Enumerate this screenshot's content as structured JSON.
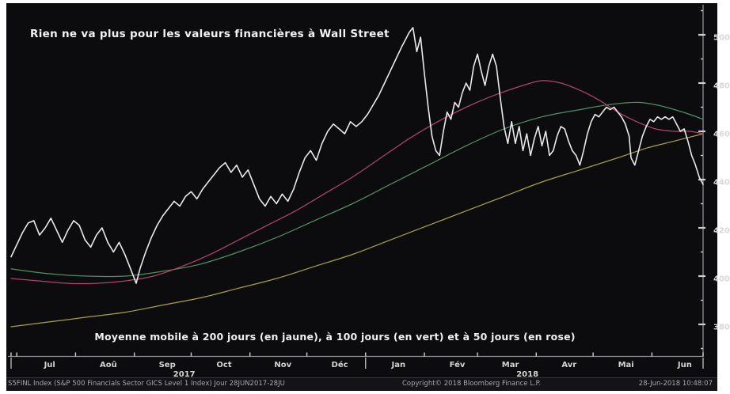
{
  "header": {
    "title": "Rien ne va plus pour les valeurs financières à Wall Street"
  },
  "annotation": {
    "text": "Moyenne mobile à 200 jours (en jaune), à 100 jours (en vert) et à 50 jours (en rose)"
  },
  "statusbar": {
    "left": "S5FINL Index (S&P 500 Financials Sector GICS Level 1 Index)  Jour 28JUN2017-28JU",
    "copyright": "Copyright© 2018 Bloomberg Finance L.P.",
    "timestamp": "28-Jun-2018 10:48:07"
  },
  "colors": {
    "background": "#0c0c0f",
    "price_line": "#e9e9e9",
    "ma50_rose": "#b04468",
    "ma100_vert": "#4f8f63",
    "ma200_jaune": "#a6a23f",
    "axis": "#8f8f94",
    "tick_label": "#d8d8d8"
  },
  "chart_data": {
    "type": "line",
    "title": "Rien ne va plus pour les valeurs financières à Wall Street",
    "xlabel": "",
    "ylabel": "",
    "x_period": "28JUN2017 - 28JUN2018 (daily)",
    "ylim": [
      367,
      511
    ],
    "y_ticks_major": [
      380,
      400,
      420,
      440,
      460,
      480,
      500
    ],
    "y_ticks_minor": [
      370,
      390,
      410,
      430,
      450,
      470,
      490,
      510
    ],
    "grid": "off",
    "legend_position": "none (described in annotation text)",
    "months": [
      {
        "label": "Jul",
        "day": 17
      },
      {
        "label": "Aoû",
        "day": 48
      },
      {
        "label": "Sep",
        "day": 79
      },
      {
        "label": "Oct",
        "day": 109
      },
      {
        "label": "Nov",
        "day": 140
      },
      {
        "label": "Déc",
        "day": 170
      },
      {
        "label": "Jan",
        "day": 201
      },
      {
        "label": "Fév",
        "day": 232
      },
      {
        "label": "Mar",
        "day": 260
      },
      {
        "label": "Avr",
        "day": 291
      },
      {
        "label": "Mai",
        "day": 321
      },
      {
        "label": "Jun",
        "day": 352
      }
    ],
    "month_start_tick_days": [
      0,
      3,
      34,
      65,
      95,
      126,
      156,
      187,
      218,
      246,
      277,
      307,
      338,
      365
    ],
    "years": [
      {
        "label": "2017",
        "day": 88
      },
      {
        "label": "2018",
        "day": 269
      }
    ],
    "year_separator_tick_days": [
      0,
      187,
      365
    ],
    "x_axis_days_total": 365,
    "series": [
      {
        "name": "MA 200 jours (jaune)",
        "color": "#a6a23f",
        "width": 1.25,
        "smooth": true,
        "points": [
          [
            0,
            379
          ],
          [
            20,
            381
          ],
          [
            40,
            383
          ],
          [
            60,
            385
          ],
          [
            80,
            388
          ],
          [
            100,
            391
          ],
          [
            120,
            395
          ],
          [
            140,
            399
          ],
          [
            160,
            404
          ],
          [
            180,
            409
          ],
          [
            200,
            415
          ],
          [
            220,
            421
          ],
          [
            240,
            427
          ],
          [
            260,
            433
          ],
          [
            280,
            439
          ],
          [
            300,
            444
          ],
          [
            320,
            449
          ],
          [
            335,
            453
          ],
          [
            350,
            456
          ],
          [
            365,
            459
          ]
        ]
      },
      {
        "name": "MA 100 jours (vert)",
        "color": "#4f8f63",
        "width": 1.25,
        "smooth": true,
        "points": [
          [
            0,
            403
          ],
          [
            20,
            401
          ],
          [
            40,
            400
          ],
          [
            60,
            400
          ],
          [
            80,
            402
          ],
          [
            100,
            405
          ],
          [
            120,
            410
          ],
          [
            140,
            416
          ],
          [
            160,
            423
          ],
          [
            180,
            430
          ],
          [
            200,
            438
          ],
          [
            220,
            446
          ],
          [
            240,
            454
          ],
          [
            260,
            461
          ],
          [
            280,
            466
          ],
          [
            300,
            469
          ],
          [
            315,
            471
          ],
          [
            330,
            472
          ],
          [
            340,
            471
          ],
          [
            350,
            469
          ],
          [
            358,
            467
          ],
          [
            365,
            465
          ]
        ]
      },
      {
        "name": "MA 50 jours (rose)",
        "color": "#b04468",
        "width": 1.25,
        "smooth": true,
        "points": [
          [
            0,
            399
          ],
          [
            15,
            398
          ],
          [
            30,
            397
          ],
          [
            45,
            397
          ],
          [
            60,
            398
          ],
          [
            75,
            400
          ],
          [
            90,
            404
          ],
          [
            105,
            409
          ],
          [
            120,
            415
          ],
          [
            135,
            421
          ],
          [
            150,
            427
          ],
          [
            165,
            434
          ],
          [
            180,
            441
          ],
          [
            195,
            449
          ],
          [
            210,
            457
          ],
          [
            225,
            464
          ],
          [
            240,
            470
          ],
          [
            255,
            475
          ],
          [
            270,
            479
          ],
          [
            280,
            481
          ],
          [
            290,
            480
          ],
          [
            300,
            477
          ],
          [
            310,
            473
          ],
          [
            320,
            468
          ],
          [
            330,
            464
          ],
          [
            340,
            461
          ],
          [
            350,
            460
          ],
          [
            358,
            460
          ],
          [
            365,
            459
          ]
        ]
      },
      {
        "name": "S5FINL Index (prix)",
        "color": "#e9e9e9",
        "width": 1.6,
        "smooth": false,
        "points": [
          [
            0,
            408
          ],
          [
            3,
            413
          ],
          [
            6,
            418
          ],
          [
            9,
            422
          ],
          [
            12,
            423
          ],
          [
            15,
            417
          ],
          [
            18,
            420
          ],
          [
            21,
            424
          ],
          [
            24,
            419
          ],
          [
            27,
            414
          ],
          [
            30,
            419
          ],
          [
            33,
            423
          ],
          [
            36,
            421
          ],
          [
            39,
            415
          ],
          [
            42,
            412
          ],
          [
            45,
            417
          ],
          [
            48,
            420
          ],
          [
            51,
            414
          ],
          [
            54,
            410
          ],
          [
            57,
            414
          ],
          [
            60,
            409
          ],
          [
            63,
            403
          ],
          [
            66,
            397
          ],
          [
            68,
            403
          ],
          [
            71,
            410
          ],
          [
            74,
            416
          ],
          [
            77,
            421
          ],
          [
            80,
            425
          ],
          [
            83,
            428
          ],
          [
            86,
            431
          ],
          [
            89,
            429
          ],
          [
            92,
            433
          ],
          [
            95,
            435
          ],
          [
            98,
            432
          ],
          [
            101,
            436
          ],
          [
            104,
            439
          ],
          [
            107,
            442
          ],
          [
            110,
            445
          ],
          [
            113,
            447
          ],
          [
            116,
            443
          ],
          [
            119,
            446
          ],
          [
            122,
            441
          ],
          [
            125,
            444
          ],
          [
            128,
            438
          ],
          [
            131,
            432
          ],
          [
            134,
            429
          ],
          [
            137,
            433
          ],
          [
            140,
            430
          ],
          [
            143,
            434
          ],
          [
            146,
            431
          ],
          [
            149,
            436
          ],
          [
            152,
            443
          ],
          [
            155,
            449
          ],
          [
            158,
            452
          ],
          [
            161,
            448
          ],
          [
            164,
            455
          ],
          [
            167,
            460
          ],
          [
            170,
            463
          ],
          [
            173,
            461
          ],
          [
            176,
            459
          ],
          [
            179,
            464
          ],
          [
            182,
            462
          ],
          [
            185,
            464
          ],
          [
            188,
            467
          ],
          [
            191,
            471
          ],
          [
            194,
            475
          ],
          [
            197,
            480
          ],
          [
            200,
            485
          ],
          [
            203,
            490
          ],
          [
            206,
            495
          ],
          [
            208,
            498
          ],
          [
            210,
            501
          ],
          [
            212,
            503
          ],
          [
            214,
            493
          ],
          [
            216,
            499
          ],
          [
            218,
            484
          ],
          [
            220,
            470
          ],
          [
            222,
            458
          ],
          [
            224,
            452
          ],
          [
            226,
            450
          ],
          [
            228,
            460
          ],
          [
            230,
            468
          ],
          [
            232,
            465
          ],
          [
            234,
            472
          ],
          [
            236,
            470
          ],
          [
            238,
            476
          ],
          [
            240,
            480
          ],
          [
            242,
            477
          ],
          [
            244,
            487
          ],
          [
            246,
            492
          ],
          [
            248,
            485
          ],
          [
            250,
            479
          ],
          [
            252,
            487
          ],
          [
            254,
            492
          ],
          [
            256,
            487
          ],
          [
            258,
            474
          ],
          [
            260,
            462
          ],
          [
            262,
            455
          ],
          [
            264,
            464
          ],
          [
            266,
            455
          ],
          [
            268,
            462
          ],
          [
            270,
            452
          ],
          [
            272,
            459
          ],
          [
            274,
            450
          ],
          [
            276,
            457
          ],
          [
            278,
            462
          ],
          [
            280,
            454
          ],
          [
            282,
            460
          ],
          [
            284,
            450
          ],
          [
            286,
            452
          ],
          [
            288,
            458
          ],
          [
            290,
            462
          ],
          [
            292,
            461
          ],
          [
            294,
            456
          ],
          [
            296,
            452
          ],
          [
            298,
            450
          ],
          [
            300,
            446
          ],
          [
            302,
            452
          ],
          [
            304,
            459
          ],
          [
            306,
            464
          ],
          [
            308,
            467
          ],
          [
            310,
            466
          ],
          [
            312,
            468
          ],
          [
            314,
            470
          ],
          [
            316,
            469
          ],
          [
            318,
            470
          ],
          [
            320,
            468
          ],
          [
            322,
            466
          ],
          [
            324,
            463
          ],
          [
            326,
            458
          ],
          [
            327,
            449
          ],
          [
            329,
            446
          ],
          [
            331,
            452
          ],
          [
            333,
            458
          ],
          [
            335,
            462
          ],
          [
            337,
            465
          ],
          [
            339,
            464
          ],
          [
            341,
            466
          ],
          [
            343,
            465
          ],
          [
            345,
            466
          ],
          [
            347,
            465
          ],
          [
            349,
            466
          ],
          [
            351,
            463
          ],
          [
            353,
            460
          ],
          [
            355,
            461
          ],
          [
            357,
            456
          ],
          [
            359,
            450
          ],
          [
            361,
            446
          ],
          [
            363,
            441
          ],
          [
            365,
            438
          ]
        ]
      }
    ]
  }
}
